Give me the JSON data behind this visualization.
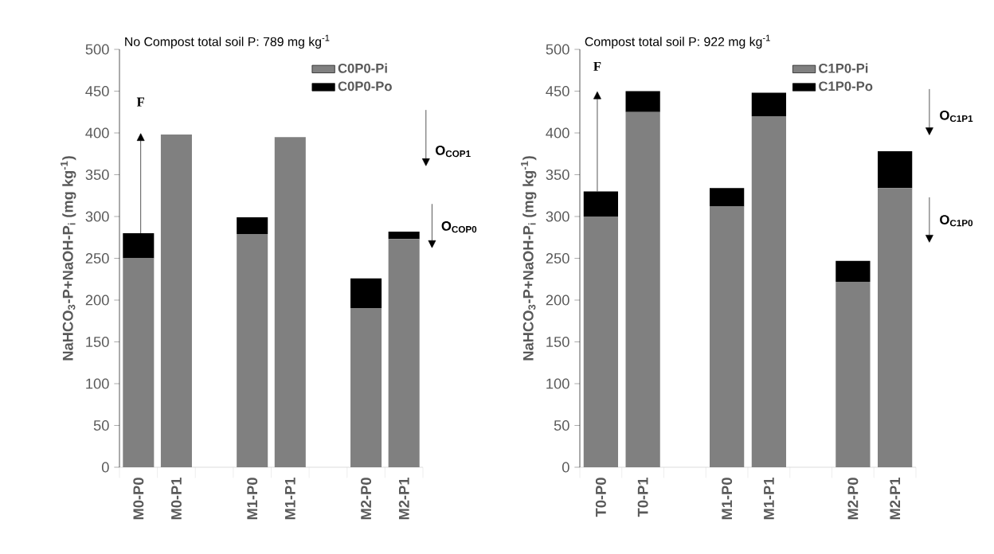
{
  "chart_data": [
    {
      "type": "bar",
      "stacked": true,
      "title": "No Compost total soil P: 789 mg kg$^{-1}$",
      "ylabel": "NaHCO$_{3}$-P+NaOH-P$_{i}$ (mg kg$^{-1}$)",
      "categories": [
        "M0-P0",
        "M0-P1",
        null,
        "M1-P0",
        "M1-P1",
        null,
        "M2-P0",
        "M2-P1"
      ],
      "series": [
        {
          "name": "C0P0-Pi",
          "color": "#808080",
          "values": [
            250,
            398,
            null,
            279,
            395,
            null,
            190,
            273
          ]
        },
        {
          "name": "C0P0-Po",
          "color": "#000000",
          "values": [
            30,
            0,
            null,
            20,
            0,
            null,
            36,
            9
          ]
        }
      ],
      "ylim": [
        0,
        500
      ],
      "yticks": [
        0,
        50,
        100,
        150,
        200,
        250,
        300,
        350,
        400,
        450,
        500
      ],
      "legend": "top right",
      "annotations": [
        "F",
        "O$_{COP1}$",
        "O$_{COP0}$"
      ]
    },
    {
      "type": "bar",
      "stacked": true,
      "title": "Compost total soil P: 922 mg kg$^{-1}$",
      "ylabel": "NaHCO$_{3}$-P+NaOH-P$_{i}$ (mg kg$^{-1}$)",
      "categories": [
        "T0-P0",
        "T0-P1",
        null,
        "M1-P0",
        "M1-P1",
        null,
        "M2-P0",
        "M2-P1"
      ],
      "series": [
        {
          "name": "C1P0-Pi",
          "color": "#808080",
          "values": [
            300,
            425,
            null,
            312,
            420,
            null,
            222,
            334
          ]
        },
        {
          "name": "C1P0-Po",
          "color": "#000000",
          "values": [
            30,
            25,
            null,
            22,
            28,
            null,
            25,
            44
          ]
        }
      ],
      "ylim": [
        0,
        500
      ],
      "yticks": [
        0,
        50,
        100,
        150,
        200,
        250,
        300,
        350,
        400,
        450,
        500
      ],
      "legend": "top right",
      "annotations": [
        "F",
        "O$_{C1P1}$",
        "O$_{C1P0}$"
      ]
    }
  ]
}
